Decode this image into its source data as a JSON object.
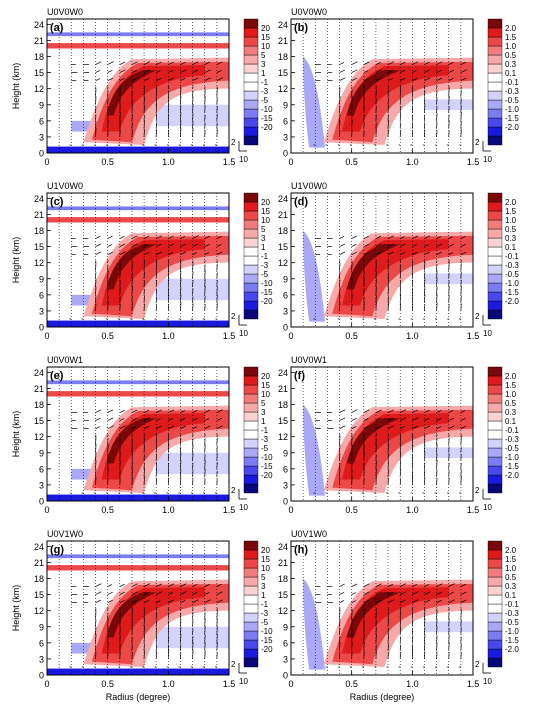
{
  "figure": {
    "axis_labels": {
      "y": "Height (km)",
      "x": "Radius (degree)"
    },
    "vector_key": {
      "horizontal": "2",
      "vertical": "10"
    }
  },
  "colorbars": {
    "left": {
      "colors": [
        "#08087a",
        "#1a1adf",
        "#4848ec",
        "#7c7cf2",
        "#a9a9f7",
        "#d2d2fb",
        "#ffffff",
        "#ffffff",
        "#fbd2d2",
        "#f7a9a9",
        "#f27c7c",
        "#ec4848",
        "#df1a1a",
        "#7a0808"
      ],
      "labels": [
        "20",
        "15",
        "10",
        "5",
        "3",
        "1",
        "-1",
        "-3",
        "-5",
        "-10",
        "-15",
        "-20"
      ]
    },
    "right": {
      "colors": [
        "#08087a",
        "#1a1adf",
        "#4848ec",
        "#7c7cf2",
        "#a9a9f7",
        "#d2d2fb",
        "#ffffff",
        "#ffffff",
        "#fbd2d2",
        "#f7a9a9",
        "#f27c7c",
        "#ec4848",
        "#df1a1a",
        "#7a0808"
      ],
      "labels": [
        "2.0",
        "1.5",
        "1.0",
        "0.5",
        "0.3",
        "0.1",
        "-0.1",
        "-0.3",
        "-0.5",
        "-1.0",
        "-1.5",
        "-2.0"
      ]
    }
  },
  "chart_data": [
    {
      "type": "heatmap",
      "panel": "(a)",
      "title": "U0V0W0",
      "field": "left",
      "xlabel": "",
      "ylabel": "Height (km)",
      "x_ticks": [
        "0",
        "0.5",
        "1.0",
        "1.5"
      ],
      "y_ticks": [
        "0",
        "3",
        "6",
        "9",
        "12",
        "15",
        "18",
        "21",
        "24"
      ],
      "xlim": [
        0,
        1.5
      ],
      "ylim": [
        0,
        25
      ]
    },
    {
      "type": "heatmap",
      "panel": "(b)",
      "title": "U0V0W0",
      "field": "right",
      "xlabel": "",
      "ylabel": "",
      "x_ticks": [
        "0",
        "0.5",
        "1.0",
        "1.5"
      ],
      "y_ticks": [
        "0",
        "3",
        "6",
        "9",
        "12",
        "15",
        "18",
        "21",
        "24"
      ],
      "xlim": [
        0,
        1.5
      ],
      "ylim": [
        0,
        25
      ]
    },
    {
      "type": "heatmap",
      "panel": "(c)",
      "title": "U1V0W0",
      "field": "left",
      "xlabel": "",
      "ylabel": "Height (km)",
      "x_ticks": [
        "0",
        "0.5",
        "1.0",
        "1.5"
      ],
      "y_ticks": [
        "0",
        "3",
        "6",
        "9",
        "12",
        "15",
        "18",
        "21",
        "24"
      ],
      "xlim": [
        0,
        1.5
      ],
      "ylim": [
        0,
        25
      ]
    },
    {
      "type": "heatmap",
      "panel": "(d)",
      "title": "U1V0W0",
      "field": "right",
      "xlabel": "",
      "ylabel": "",
      "x_ticks": [
        "0",
        "0.5",
        "1.0",
        "1.5"
      ],
      "y_ticks": [
        "0",
        "3",
        "6",
        "9",
        "12",
        "15",
        "18",
        "21",
        "24"
      ],
      "xlim": [
        0,
        1.5
      ],
      "ylim": [
        0,
        25
      ]
    },
    {
      "type": "heatmap",
      "panel": "(e)",
      "title": "U0V0W1",
      "field": "left",
      "xlabel": "",
      "ylabel": "Height (km)",
      "x_ticks": [
        "0",
        "0.5",
        "1.0",
        "1.5"
      ],
      "y_ticks": [
        "0",
        "3",
        "6",
        "9",
        "12",
        "15",
        "18",
        "21",
        "24"
      ],
      "xlim": [
        0,
        1.5
      ],
      "ylim": [
        0,
        25
      ]
    },
    {
      "type": "heatmap",
      "panel": "(f)",
      "title": "U0V0W1",
      "field": "right",
      "xlabel": "",
      "ylabel": "",
      "x_ticks": [
        "0",
        "0.5",
        "1.0",
        "1.5"
      ],
      "y_ticks": [
        "0",
        "3",
        "6",
        "9",
        "12",
        "15",
        "18",
        "21",
        "24"
      ],
      "xlim": [
        0,
        1.5
      ],
      "ylim": [
        0,
        25
      ]
    },
    {
      "type": "heatmap",
      "panel": "(g)",
      "title": "U0V1W0",
      "field": "left",
      "xlabel": "Radius (degree)",
      "ylabel": "Height (km)",
      "x_ticks": [
        "0",
        "0.5",
        "1.0",
        "1.5"
      ],
      "y_ticks": [
        "0",
        "3",
        "6",
        "9",
        "12",
        "15",
        "18",
        "21",
        "24"
      ],
      "xlim": [
        0,
        1.5
      ],
      "ylim": [
        0,
        25
      ]
    },
    {
      "type": "heatmap",
      "panel": "(h)",
      "title": "U0V1W0",
      "field": "right",
      "xlabel": "Radius (degree)",
      "ylabel": "",
      "x_ticks": [
        "0",
        "0.5",
        "1.0",
        "1.5"
      ],
      "y_ticks": [
        "0",
        "3",
        "6",
        "9",
        "12",
        "15",
        "18",
        "21",
        "24"
      ],
      "xlim": [
        0,
        1.5
      ],
      "ylim": [
        0,
        25
      ]
    }
  ]
}
